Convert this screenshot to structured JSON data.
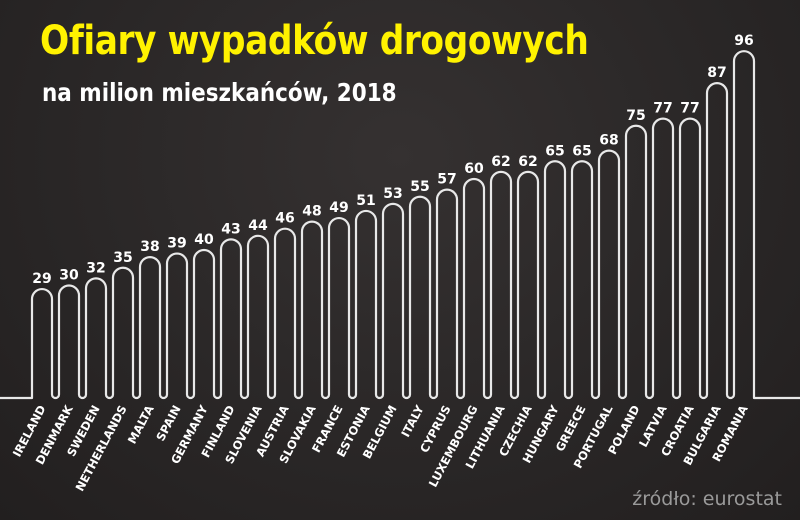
{
  "header": {
    "title": "Ofiary wypadków drogowych",
    "subtitle": "na milion mieszkańców, 2018"
  },
  "footer": {
    "source": "źródło: eurostat"
  },
  "colors": {
    "background": "#2b2828",
    "title": "#fff200",
    "line": "#e8e8e8",
    "text": "#ffffff",
    "source": "#9a9a9a"
  },
  "chart_data": {
    "type": "bar",
    "title": "Ofiary wypadków drogowych",
    "subtitle": "na milion mieszkańców, 2018",
    "xlabel": "",
    "ylabel": "",
    "grid": false,
    "legend": null,
    "source": "źródło: eurostat",
    "categories": [
      "IRELAND",
      "DENMARK",
      "SWEDEN",
      "NETHERLANDS",
      "MALTA",
      "SPAIN",
      "GERMANY",
      "FINLAND",
      "SLOVENIA",
      "AUSTRIA",
      "SLOVAKIA",
      "FRANCE",
      "ESTONIA",
      "BELGIUM",
      "ITALY",
      "CYPRUS",
      "LUXEMBOURG",
      "LITHUANIA",
      "CZECHIA",
      "HUNGARY",
      "GREECE",
      "PORTUGAL",
      "POLAND",
      "LATVIA",
      "CROATIA",
      "BULGARIA",
      "ROMANIA"
    ],
    "values": [
      29,
      30,
      32,
      35,
      38,
      39,
      40,
      43,
      44,
      46,
      48,
      49,
      51,
      53,
      55,
      57,
      60,
      62,
      62,
      65,
      65,
      68,
      75,
      77,
      77,
      87,
      96
    ],
    "ylim": [
      0,
      100
    ]
  }
}
